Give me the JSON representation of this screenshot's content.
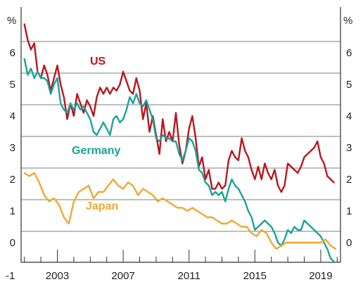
{
  "chart_data": {
    "type": "line",
    "y_unit": "%",
    "ylim": [
      -1,
      7
    ],
    "y_ticks": [
      6,
      5,
      4,
      3,
      2,
      1,
      0,
      -1
    ],
    "xlim": [
      2000.8,
      2020.2
    ],
    "x_ticks": [
      "2003",
      "2007",
      "2011",
      "2015",
      "2019"
    ],
    "grid": {
      "horizontal": true,
      "vertical": false
    },
    "legend": "labels placed on the plot next to each line",
    "series": [
      {
        "name": "US",
        "color": "#b8161e",
        "points": [
          [
            2001.0,
            6.9
          ],
          [
            2001.2,
            6.4
          ],
          [
            2001.4,
            6.1
          ],
          [
            2001.6,
            6.3
          ],
          [
            2001.8,
            5.4
          ],
          [
            2002.0,
            5.2
          ],
          [
            2002.2,
            5.6
          ],
          [
            2002.4,
            5.3
          ],
          [
            2002.6,
            4.8
          ],
          [
            2002.8,
            5.2
          ],
          [
            2003.0,
            5.6
          ],
          [
            2003.2,
            5.0
          ],
          [
            2003.4,
            4.6
          ],
          [
            2003.6,
            3.9
          ],
          [
            2003.8,
            4.4
          ],
          [
            2004.0,
            4.0
          ],
          [
            2004.2,
            4.7
          ],
          [
            2004.4,
            4.4
          ],
          [
            2004.6,
            4.1
          ],
          [
            2004.8,
            4.5
          ],
          [
            2005.0,
            4.3
          ],
          [
            2005.2,
            4.0
          ],
          [
            2005.4,
            4.6
          ],
          [
            2005.6,
            4.9
          ],
          [
            2005.8,
            4.7
          ],
          [
            2006.0,
            4.9
          ],
          [
            2006.2,
            4.7
          ],
          [
            2006.4,
            4.9
          ],
          [
            2006.6,
            4.8
          ],
          [
            2006.8,
            5.0
          ],
          [
            2007.0,
            5.4
          ],
          [
            2007.2,
            5.1
          ],
          [
            2007.4,
            4.8
          ],
          [
            2007.6,
            4.7
          ],
          [
            2007.8,
            5.2
          ],
          [
            2008.0,
            4.8
          ],
          [
            2008.2,
            3.9
          ],
          [
            2008.4,
            4.4
          ],
          [
            2008.6,
            3.5
          ],
          [
            2008.8,
            4.0
          ],
          [
            2009.0,
            3.4
          ],
          [
            2009.2,
            2.8
          ],
          [
            2009.4,
            3.9
          ],
          [
            2009.6,
            3.2
          ],
          [
            2009.8,
            3.5
          ],
          [
            2010.0,
            3.2
          ],
          [
            2010.2,
            4.1
          ],
          [
            2010.4,
            3.1
          ],
          [
            2010.6,
            2.5
          ],
          [
            2010.8,
            2.9
          ],
          [
            2011.0,
            3.6
          ],
          [
            2011.2,
            4.0
          ],
          [
            2011.4,
            3.3
          ],
          [
            2011.6,
            2.4
          ],
          [
            2011.8,
            2.7
          ],
          [
            2012.0,
            2.0
          ],
          [
            2012.2,
            2.3
          ],
          [
            2012.4,
            1.7
          ],
          [
            2012.6,
            1.7
          ],
          [
            2012.8,
            1.9
          ],
          [
            2013.0,
            1.7
          ],
          [
            2013.2,
            1.8
          ],
          [
            2013.4,
            2.6
          ],
          [
            2013.6,
            2.9
          ],
          [
            2013.8,
            2.7
          ],
          [
            2014.0,
            2.6
          ],
          [
            2014.2,
            3.3
          ],
          [
            2014.4,
            2.9
          ],
          [
            2014.6,
            2.7
          ],
          [
            2014.8,
            2.3
          ],
          [
            2015.0,
            2.0
          ],
          [
            2015.2,
            2.4
          ],
          [
            2015.4,
            2.0
          ],
          [
            2015.6,
            2.5
          ],
          [
            2015.8,
            2.2
          ],
          [
            2016.0,
            2.0
          ],
          [
            2016.2,
            2.3
          ],
          [
            2016.4,
            1.8
          ],
          [
            2016.6,
            1.6
          ],
          [
            2016.8,
            1.8
          ],
          [
            2017.0,
            2.5
          ],
          [
            2017.2,
            2.4
          ],
          [
            2017.4,
            2.3
          ],
          [
            2017.6,
            2.2
          ],
          [
            2017.8,
            2.4
          ],
          [
            2018.0,
            2.7
          ],
          [
            2018.2,
            2.8
          ],
          [
            2018.4,
            2.9
          ],
          [
            2018.6,
            3.0
          ],
          [
            2018.8,
            3.2
          ],
          [
            2019.0,
            2.7
          ],
          [
            2019.2,
            2.5
          ],
          [
            2019.4,
            2.1
          ],
          [
            2019.6,
            2.0
          ],
          [
            2019.8,
            1.9
          ]
        ]
      },
      {
        "name": "Germany",
        "color": "#17a39a",
        "points": [
          [
            2001.0,
            5.8
          ],
          [
            2001.2,
            5.3
          ],
          [
            2001.4,
            5.5
          ],
          [
            2001.6,
            5.2
          ],
          [
            2001.8,
            5.4
          ],
          [
            2002.0,
            5.2
          ],
          [
            2002.2,
            5.2
          ],
          [
            2002.4,
            5.1
          ],
          [
            2002.6,
            4.7
          ],
          [
            2002.8,
            5.0
          ],
          [
            2003.0,
            5.2
          ],
          [
            2003.2,
            4.4
          ],
          [
            2003.4,
            4.2
          ],
          [
            2003.6,
            4.1
          ],
          [
            2003.8,
            4.4
          ],
          [
            2004.0,
            4.2
          ],
          [
            2004.2,
            4.4
          ],
          [
            2004.4,
            4.2
          ],
          [
            2004.6,
            4.3
          ],
          [
            2004.8,
            4.1
          ],
          [
            2005.0,
            3.9
          ],
          [
            2005.2,
            3.5
          ],
          [
            2005.4,
            3.4
          ],
          [
            2005.6,
            3.6
          ],
          [
            2005.8,
            3.8
          ],
          [
            2006.0,
            3.6
          ],
          [
            2006.2,
            3.4
          ],
          [
            2006.4,
            3.9
          ],
          [
            2006.6,
            4.0
          ],
          [
            2006.8,
            3.8
          ],
          [
            2007.0,
            3.9
          ],
          [
            2007.2,
            4.2
          ],
          [
            2007.4,
            4.6
          ],
          [
            2007.6,
            4.4
          ],
          [
            2007.8,
            4.7
          ],
          [
            2008.0,
            4.4
          ],
          [
            2008.2,
            4.3
          ],
          [
            2008.4,
            4.5
          ],
          [
            2008.6,
            4.2
          ],
          [
            2008.8,
            3.9
          ],
          [
            2009.0,
            3.3
          ],
          [
            2009.2,
            3.2
          ],
          [
            2009.4,
            3.4
          ],
          [
            2009.6,
            3.3
          ],
          [
            2009.8,
            3.3
          ],
          [
            2010.0,
            3.2
          ],
          [
            2010.2,
            3.2
          ],
          [
            2010.4,
            2.8
          ],
          [
            2010.6,
            2.6
          ],
          [
            2010.8,
            2.9
          ],
          [
            2011.0,
            3.3
          ],
          [
            2011.2,
            3.2
          ],
          [
            2011.4,
            2.9
          ],
          [
            2011.6,
            2.3
          ],
          [
            2011.8,
            2.2
          ],
          [
            2012.0,
            1.9
          ],
          [
            2012.2,
            1.8
          ],
          [
            2012.4,
            1.5
          ],
          [
            2012.6,
            1.6
          ],
          [
            2012.8,
            1.5
          ],
          [
            2013.0,
            1.6
          ],
          [
            2013.2,
            1.3
          ],
          [
            2013.4,
            1.7
          ],
          [
            2013.6,
            2.0
          ],
          [
            2013.8,
            1.8
          ],
          [
            2014.0,
            1.7
          ],
          [
            2014.2,
            1.5
          ],
          [
            2014.4,
            1.3
          ],
          [
            2014.6,
            1.0
          ],
          [
            2014.8,
            0.8
          ],
          [
            2015.0,
            0.4
          ],
          [
            2015.2,
            0.5
          ],
          [
            2015.4,
            0.6
          ],
          [
            2015.6,
            0.7
          ],
          [
            2015.8,
            0.6
          ],
          [
            2016.0,
            0.5
          ],
          [
            2016.2,
            0.3
          ],
          [
            2016.4,
            0.0
          ],
          [
            2016.6,
            -0.1
          ],
          [
            2016.8,
            0.1
          ],
          [
            2017.0,
            0.4
          ],
          [
            2017.2,
            0.3
          ],
          [
            2017.4,
            0.5
          ],
          [
            2017.6,
            0.4
          ],
          [
            2017.8,
            0.4
          ],
          [
            2018.0,
            0.7
          ],
          [
            2018.2,
            0.6
          ],
          [
            2018.4,
            0.5
          ],
          [
            2018.6,
            0.4
          ],
          [
            2018.8,
            0.3
          ],
          [
            2019.0,
            0.2
          ],
          [
            2019.2,
            0.0
          ],
          [
            2019.4,
            -0.2
          ],
          [
            2019.6,
            -0.5
          ],
          [
            2019.8,
            -0.6
          ]
        ]
      },
      {
        "name": "Japan",
        "color": "#f0a830",
        "points": [
          [
            2001.0,
            2.2
          ],
          [
            2001.3,
            2.1
          ],
          [
            2001.6,
            2.2
          ],
          [
            2001.9,
            1.9
          ],
          [
            2002.2,
            1.5
          ],
          [
            2002.5,
            1.3
          ],
          [
            2002.8,
            1.4
          ],
          [
            2003.1,
            1.2
          ],
          [
            2003.4,
            0.8
          ],
          [
            2003.7,
            0.6
          ],
          [
            2004.0,
            1.3
          ],
          [
            2004.3,
            1.6
          ],
          [
            2004.6,
            1.7
          ],
          [
            2004.9,
            1.8
          ],
          [
            2005.2,
            1.4
          ],
          [
            2005.5,
            1.6
          ],
          [
            2005.8,
            1.6
          ],
          [
            2006.1,
            1.8
          ],
          [
            2006.4,
            2.0
          ],
          [
            2006.7,
            1.8
          ],
          [
            2007.0,
            1.7
          ],
          [
            2007.3,
            1.9
          ],
          [
            2007.6,
            1.8
          ],
          [
            2007.9,
            1.5
          ],
          [
            2008.2,
            1.7
          ],
          [
            2008.5,
            1.6
          ],
          [
            2008.8,
            1.5
          ],
          [
            2009.1,
            1.3
          ],
          [
            2009.4,
            1.4
          ],
          [
            2009.7,
            1.3
          ],
          [
            2010.0,
            1.2
          ],
          [
            2010.3,
            1.1
          ],
          [
            2010.6,
            1.1
          ],
          [
            2010.9,
            1.0
          ],
          [
            2011.2,
            1.1
          ],
          [
            2011.5,
            1.0
          ],
          [
            2011.8,
            0.9
          ],
          [
            2012.1,
            0.8
          ],
          [
            2012.4,
            0.8
          ],
          [
            2012.7,
            0.7
          ],
          [
            2013.0,
            0.6
          ],
          [
            2013.3,
            0.6
          ],
          [
            2013.6,
            0.7
          ],
          [
            2013.9,
            0.6
          ],
          [
            2014.2,
            0.5
          ],
          [
            2014.5,
            0.5
          ],
          [
            2014.8,
            0.3
          ],
          [
            2015.1,
            0.2
          ],
          [
            2015.4,
            0.4
          ],
          [
            2015.7,
            0.3
          ],
          [
            2016.0,
            0.0
          ],
          [
            2016.3,
            -0.2
          ],
          [
            2016.6,
            -0.1
          ],
          [
            2016.9,
            0.0
          ],
          [
            2017.2,
            0.0
          ],
          [
            2017.5,
            0.0
          ],
          [
            2017.8,
            0.0
          ],
          [
            2018.1,
            0.0
          ],
          [
            2018.4,
            0.0
          ],
          [
            2018.7,
            0.0
          ],
          [
            2019.0,
            0.0
          ],
          [
            2019.3,
            0.1
          ],
          [
            2019.6,
            -0.1
          ],
          [
            2019.9,
            -0.2
          ]
        ]
      }
    ]
  }
}
